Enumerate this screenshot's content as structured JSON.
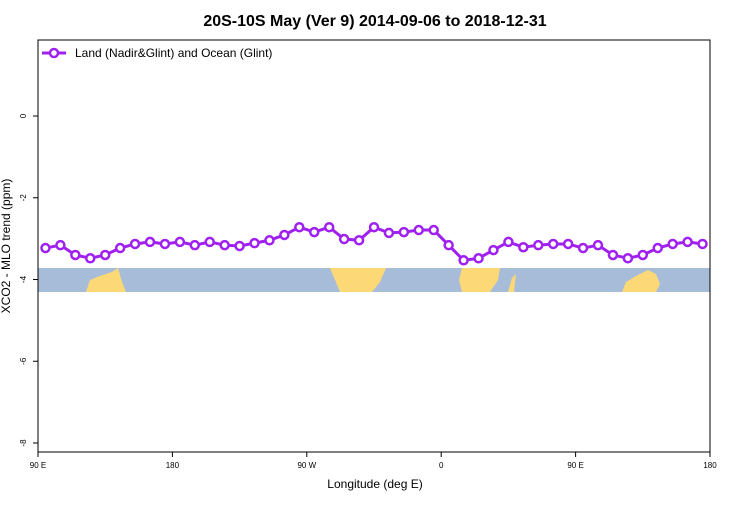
{
  "chart_data": {
    "type": "line",
    "title": "20S-10S May (Ver 9)   2014-09-06 to 2018-12-31",
    "x_label": "Longitude (deg E)",
    "y_label": "XCO2 - MLO trend (ppm)",
    "x": [
      95,
      105,
      115,
      125,
      135,
      145,
      155,
      165,
      175,
      185,
      195,
      205,
      215,
      225,
      235,
      245,
      255,
      265,
      275,
      285,
      295,
      305,
      315,
      325,
      335,
      345,
      355,
      365,
      375,
      385,
      395,
      405,
      415,
      425,
      435,
      445,
      455,
      465,
      475,
      485,
      495,
      505,
      515,
      525,
      535
    ],
    "series": [
      {
        "name": "Land (Nadir&Glint) and Ocean (Glint)",
        "color": "#a020f0",
        "values": [
          -3.23,
          -3.16,
          -3.4,
          -3.48,
          -3.4,
          -3.23,
          -3.13,
          -3.08,
          -3.13,
          -3.08,
          -3.16,
          -3.08,
          -3.16,
          -3.18,
          -3.11,
          -3.04,
          -2.91,
          -2.72,
          -2.84,
          -2.72,
          -3.01,
          -3.04,
          -2.72,
          -2.86,
          -2.84,
          -2.79,
          -2.79,
          -3.16,
          -3.53,
          -3.48,
          -3.28,
          -3.08,
          -3.21,
          -3.16,
          -3.13,
          -3.13,
          -3.23,
          -3.16,
          -3.4,
          -3.48,
          -3.4,
          -3.23,
          -3.13,
          -3.08,
          -3.13
        ]
      }
    ],
    "xlim": [
      90,
      540
    ],
    "xticks": [
      {
        "value": 90,
        "label": "90 E"
      },
      {
        "value": 180,
        "label": "180"
      },
      {
        "value": 270,
        "label": "90 W"
      },
      {
        "value": 360,
        "label": "0"
      },
      {
        "value": 450,
        "label": "90 E"
      },
      {
        "value": 540,
        "label": "180"
      }
    ],
    "ylim": [
      -8.22,
      1.86
    ],
    "yticks": [
      0,
      -2,
      -4,
      -6,
      -8
    ],
    "legend": "top-left"
  }
}
